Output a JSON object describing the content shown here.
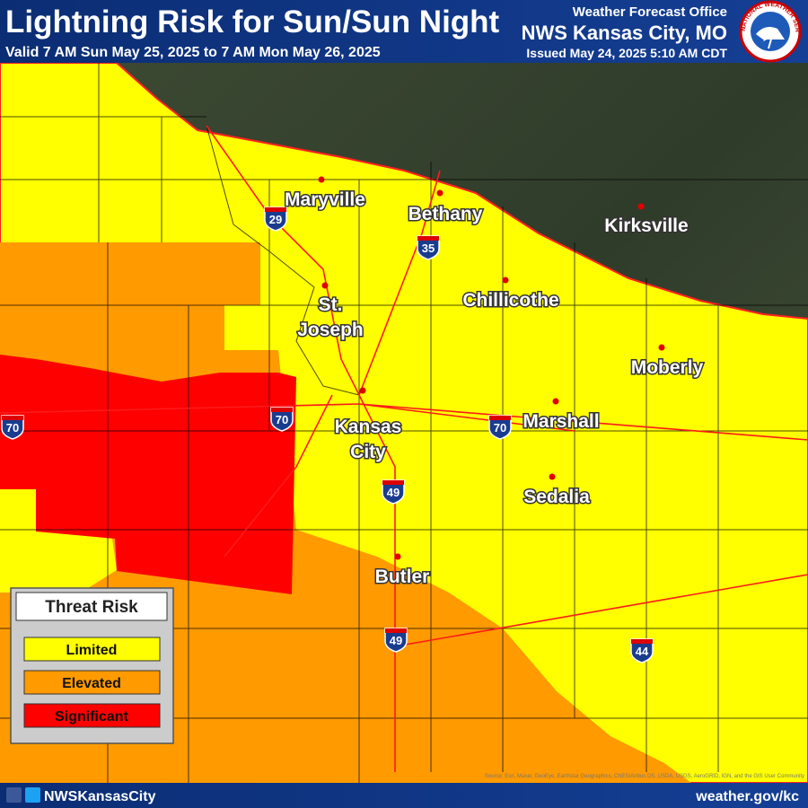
{
  "header": {
    "title": "Lightning Risk for Sun/Sun Night",
    "valid": "Valid 7 AM Sun May 25, 2025 to 7 AM Mon May 26, 2025",
    "office": "Weather Forecast Office",
    "office_name": "NWS Kansas City, MO",
    "issued": "Issued May 24, 2025 5:10 AM CDT"
  },
  "logo": {
    "text": "NATIONAL WEATHER SERVICE"
  },
  "map": {
    "cities": [
      {
        "lines": [
          "Maryville"
        ]
      },
      {
        "lines": [
          "Bethany"
        ]
      },
      {
        "lines": [
          "Kirksville"
        ]
      },
      {
        "lines": [
          "St.",
          "Joseph"
        ]
      },
      {
        "lines": [
          "Chillicothe"
        ]
      },
      {
        "lines": [
          "Moberly"
        ]
      },
      {
        "lines": [
          "Kansas",
          "City"
        ]
      },
      {
        "lines": [
          "Marshall"
        ]
      },
      {
        "lines": [
          "Sedalia"
        ]
      },
      {
        "lines": [
          "Butler"
        ]
      }
    ],
    "interstates": [
      "29",
      "35",
      "70",
      "70",
      "70",
      "49",
      "49",
      "44"
    ],
    "source": "Source: Esri, Maxar, GeoEye, Earthstar Geographics, CNES/Airbus DS, USDA, USGS, AeroGRID, IGN, and the GIS User Community"
  },
  "legend": {
    "title": "Threat Risk",
    "items": [
      "Limited",
      "Elevated",
      "Significant"
    ]
  },
  "footer": {
    "social": "NWSKansasCity",
    "website": "weather.gov/kc"
  }
}
